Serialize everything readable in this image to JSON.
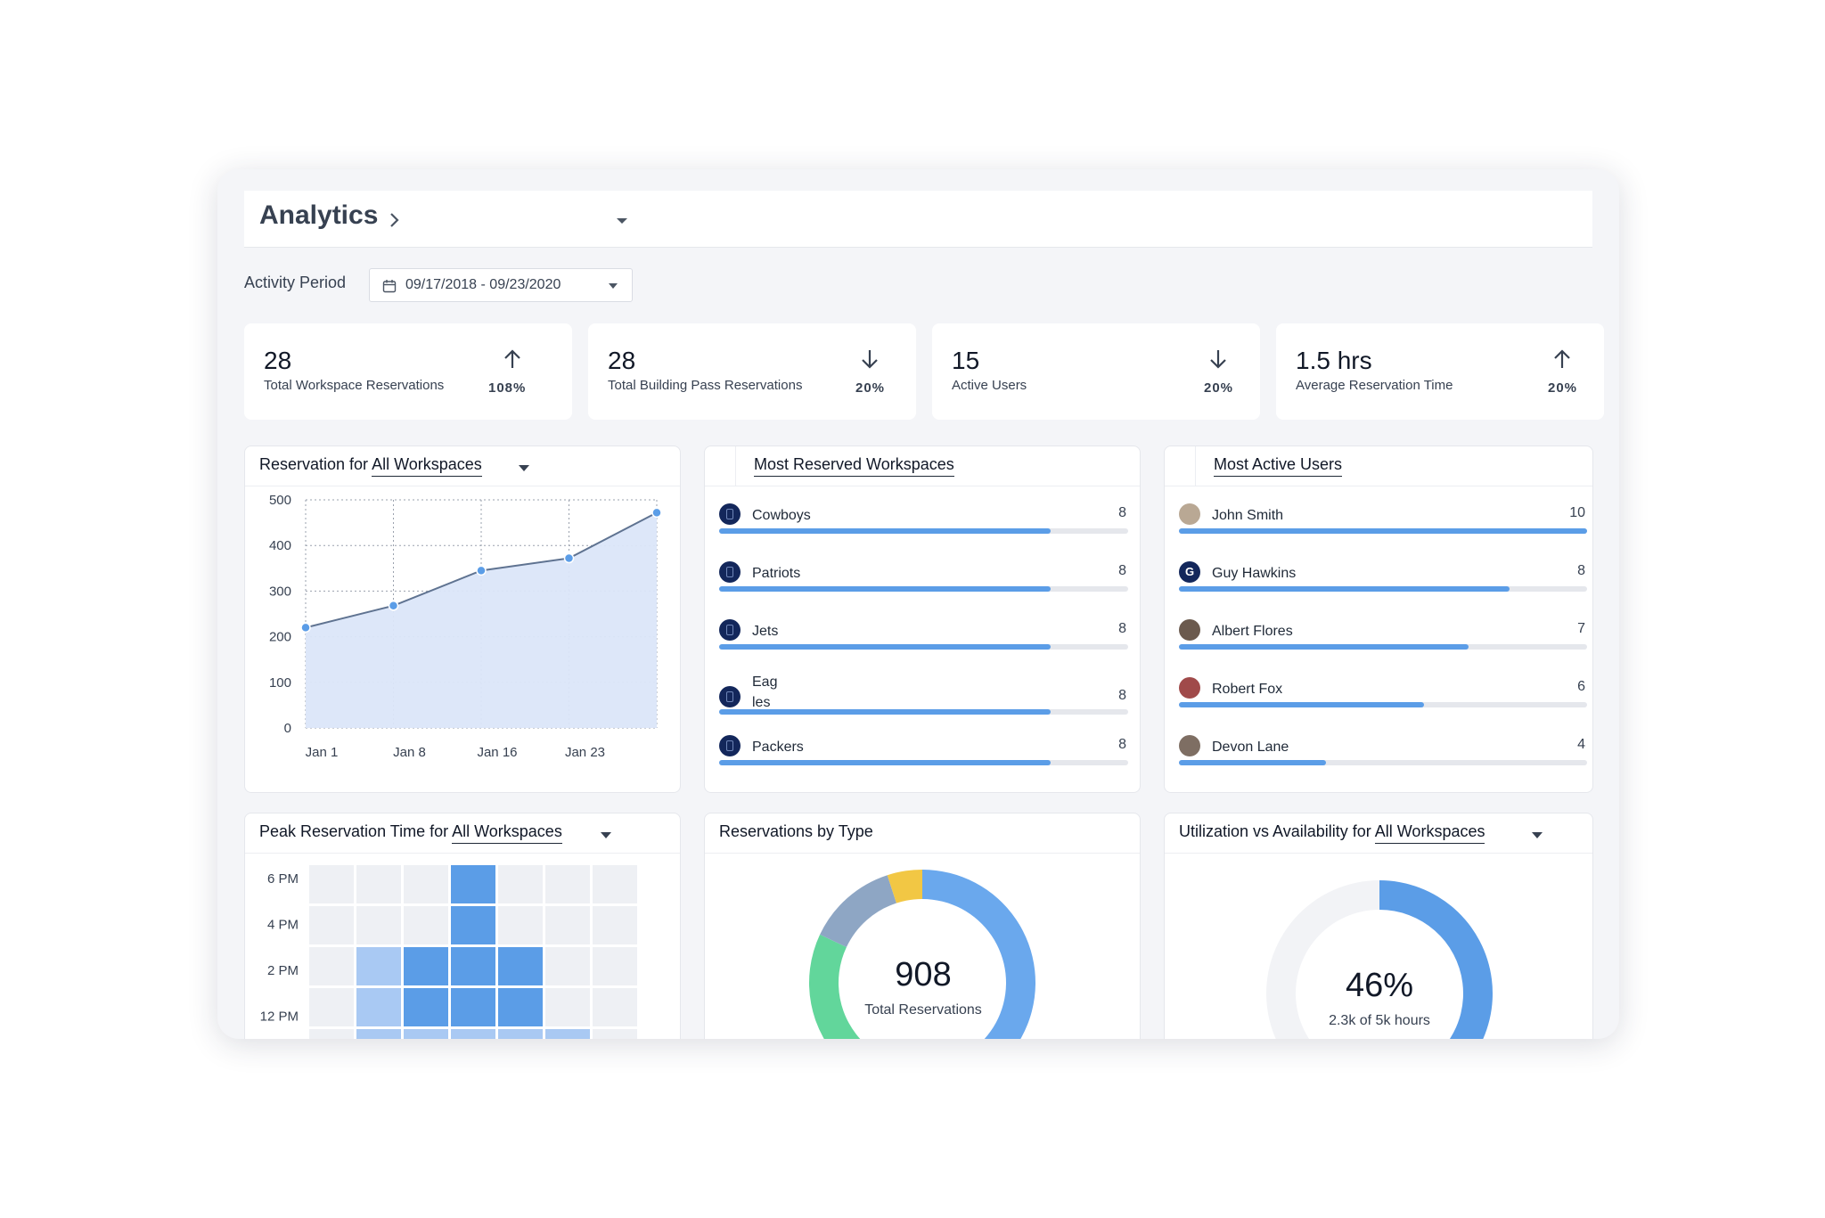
{
  "header": {
    "title": "Analytics"
  },
  "activity": {
    "label": "Activity Period",
    "range": "09/17/2018 - 09/23/2020"
  },
  "kpis": [
    {
      "value": "28",
      "label": "Total Workspace Reservations",
      "change": "108%",
      "direction": "up"
    },
    {
      "value": "28",
      "label": "Total Building Pass Reservations",
      "change": "20%",
      "direction": "down"
    },
    {
      "value": "15",
      "label": "Active Users",
      "change": "20%",
      "direction": "down"
    },
    {
      "value": "1.5 hrs",
      "label": "Average Reservation Time",
      "change": "20%",
      "direction": "up"
    }
  ],
  "reservation_chart": {
    "title_prefix": "Reservation for ",
    "title_filter": "All Workspaces"
  },
  "chart_data": [
    {
      "type": "area",
      "categories": [
        "Jan 1",
        "Jan 8",
        "Jan 16",
        "Jan 23"
      ],
      "x": [
        0,
        1,
        2,
        3,
        4
      ],
      "values": [
        220,
        268,
        345,
        372,
        472
      ],
      "yticks": [
        500,
        400,
        300,
        200,
        100,
        0
      ],
      "ylim": [
        0,
        500
      ],
      "grid": true,
      "color": "#5b9de7",
      "fill": "#dbe6f9",
      "line": "#5f7391"
    },
    {
      "type": "heatmap",
      "yticks": [
        "6 PM",
        "4 PM",
        "2 PM",
        "12 PM"
      ],
      "rows": [
        [
          0,
          0,
          0,
          2,
          0,
          0,
          0
        ],
        [
          0,
          0,
          0,
          2,
          0,
          0,
          0
        ],
        [
          0,
          1,
          2,
          2,
          2,
          0,
          0
        ],
        [
          0,
          1,
          2,
          2,
          2,
          0,
          0
        ],
        [
          0,
          1,
          1,
          1,
          1,
          1,
          0
        ]
      ],
      "colors": [
        "#eef0f4",
        "#a9c9f3",
        "#5b9de7"
      ]
    },
    {
      "type": "pie",
      "values": [
        62,
        20,
        13,
        5
      ],
      "colors": [
        "#6aa8ed",
        "#62d69b",
        "#8ea6c4",
        "#f2c744"
      ]
    },
    {
      "type": "pie",
      "values": [
        46,
        54
      ],
      "colors": [
        "#5b9de7",
        "#f2f3f6"
      ]
    }
  ],
  "most_reserved": {
    "title": "Most Reserved Workspaces",
    "items": [
      {
        "name": "Cowboys",
        "count": "8",
        "fraction": 0.81
      },
      {
        "name": "Patriots",
        "count": "8",
        "fraction": 0.81
      },
      {
        "name": "Jets",
        "count": "8",
        "fraction": 0.81
      },
      {
        "name": "Eag\nles",
        "count": "8",
        "fraction": 0.81
      },
      {
        "name": "Packers",
        "count": "8",
        "fraction": 0.81
      }
    ]
  },
  "most_active": {
    "title": "Most Active Users",
    "items": [
      {
        "name": "John Smith",
        "count": "10",
        "fraction": 1.0,
        "avatar": "#b9a894"
      },
      {
        "name": "Guy Hawkins",
        "count": "8",
        "fraction": 0.81,
        "avatar": "#13275b",
        "initial": "G"
      },
      {
        "name": "Albert Flores",
        "count": "7",
        "fraction": 0.71,
        "avatar": "#6b5a4e"
      },
      {
        "name": "Robert Fox",
        "count": "6",
        "fraction": 0.6,
        "avatar": "#a04a4a"
      },
      {
        "name": "Devon Lane",
        "count": "4",
        "fraction": 0.36,
        "avatar": "#7e6e63"
      }
    ]
  },
  "peak_chart": {
    "title_prefix": "Peak Reservation Time for ",
    "title_filter": "All Workspaces"
  },
  "by_type": {
    "title": "Reservations by Type",
    "total": "908",
    "total_label": "Total Reservations"
  },
  "utilization": {
    "title_prefix": "Utilization vs Availability for ",
    "title_filter": "All Workspaces",
    "percent": "46%",
    "sub": "2.3k of 5k hours"
  },
  "colors": {
    "accent": "#5b9de7",
    "badge": "#13275b"
  }
}
